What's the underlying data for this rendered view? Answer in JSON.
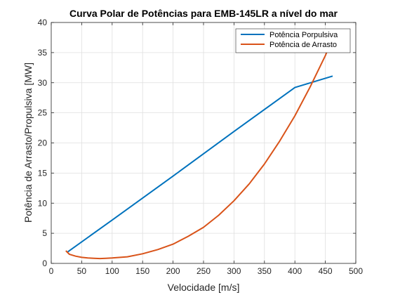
{
  "chart_data": {
    "type": "line",
    "title": "Curva Polar de Potências para EMB-145LR a nível do mar",
    "xlabel": "Velocidade [m/s]",
    "ylabel": "Potência de Arrasto/Propulsiva  [MW]",
    "xlim": [
      0,
      500
    ],
    "ylim": [
      0,
      40
    ],
    "xticks": [
      0,
      50,
      100,
      150,
      200,
      250,
      300,
      350,
      400,
      450,
      500
    ],
    "yticks": [
      0,
      5,
      10,
      15,
      20,
      25,
      30,
      35,
      40
    ],
    "grid": true,
    "legend": "top-right",
    "series": [
      {
        "name": "Potência Porpulsiva",
        "color": "#0072BD",
        "x": [
          27,
          100,
          200,
          300,
          400,
          462
        ],
        "y": [
          1.9,
          7.2,
          14.5,
          21.9,
          29.2,
          31.1
        ]
      },
      {
        "name": "Potência de Arrasto",
        "color": "#D95319",
        "x": [
          24,
          30,
          40,
          50,
          60,
          70,
          80,
          90,
          100,
          125,
          150,
          175,
          200,
          225,
          250,
          275,
          300,
          325,
          350,
          375,
          400,
          425,
          450,
          462
        ],
        "y": [
          2.1,
          1.5,
          1.2,
          1.0,
          0.9,
          0.85,
          0.8,
          0.85,
          0.9,
          1.1,
          1.6,
          2.3,
          3.2,
          4.5,
          6.0,
          8.0,
          10.4,
          13.2,
          16.5,
          20.3,
          24.5,
          29.3,
          34.5,
          37.5
        ]
      }
    ]
  }
}
